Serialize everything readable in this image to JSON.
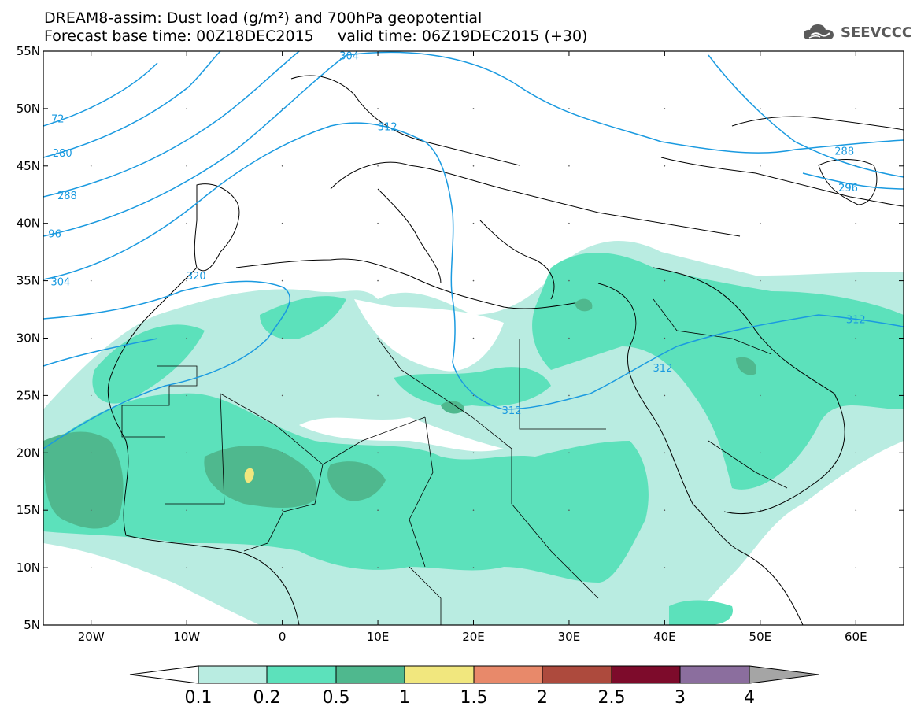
{
  "title": {
    "line1": "DREAM8-assim: Dust load (g/m²) and 700hPa geopotential",
    "line2": "Forecast base time: 00Z18DEC2015     valid time: 06Z19DEC2015 (+30)"
  },
  "logo": {
    "text": "SEEVCCC",
    "icon": "cloud-icon"
  },
  "axes": {
    "lat_labels": [
      "55N",
      "50N",
      "45N",
      "40N",
      "35N",
      "30N",
      "25N",
      "20N",
      "15N",
      "10N",
      "5N"
    ],
    "lon_labels": [
      "20W",
      "10W",
      "0",
      "10E",
      "20E",
      "30E",
      "40E",
      "50E",
      "60E"
    ],
    "lat_range": [
      5,
      55
    ],
    "lon_range": [
      -25,
      65
    ]
  },
  "contour_labels": [
    {
      "text": "304",
      "lon": 7,
      "lat": 54.5
    },
    {
      "text": "312",
      "lon": 11,
      "lat": 48.3
    },
    {
      "text": "72",
      "lon": -23.5,
      "lat": 49
    },
    {
      "text": "280",
      "lon": -23,
      "lat": 46
    },
    {
      "text": "288",
      "lon": -22.5,
      "lat": 42.3
    },
    {
      "text": "96",
      "lon": -23.8,
      "lat": 39
    },
    {
      "text": "304",
      "lon": -23.2,
      "lat": 34.8
    },
    {
      "text": "320",
      "lon": -9,
      "lat": 35.3
    },
    {
      "text": "312",
      "lon": 24,
      "lat": 23.6
    },
    {
      "text": "312",
      "lon": 39.8,
      "lat": 27.3
    },
    {
      "text": "312",
      "lon": 60,
      "lat": 31.5
    },
    {
      "text": "288",
      "lon": 58.8,
      "lat": 46.2
    },
    {
      "text": "296",
      "lon": 59.2,
      "lat": 43
    },
    {
      "text": "296",
      "lon": 59.2,
      "lat": 43
    }
  ],
  "colorbar": {
    "labels": [
      "0.1",
      "0.2",
      "0.5",
      "1",
      "1.5",
      "2",
      "2.5",
      "3",
      "4"
    ],
    "colors": [
      "#ffffff",
      "#b9ece1",
      "#5ce1bb",
      "#4fb88e",
      "#f1e77e",
      "#e8896a",
      "#ad4a3d",
      "#7d0b2b",
      "#8b6e9e",
      "#a5a5a5"
    ]
  },
  "colors": {
    "contour": "#1a9ae0",
    "land_border": "#000000",
    "dust_low": "#b9ece1",
    "dust_mid": "#5ce1bb",
    "dust_high": "#4fb88e",
    "dust_peak": "#f1e77e"
  }
}
